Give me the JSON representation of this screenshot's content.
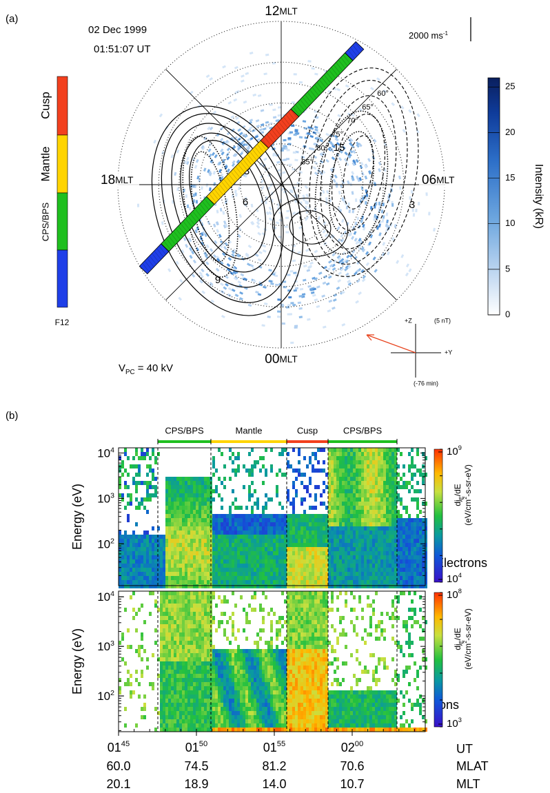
{
  "panel_a": {
    "label": "(a)",
    "date": "02 Dec 1999",
    "time": "01:51:07 UT",
    "mlt_labels": [
      {
        "hour": "12",
        "unit": "MLT"
      },
      {
        "hour": "06",
        "unit": "MLT"
      },
      {
        "hour": "00",
        "unit": "MLT"
      },
      {
        "hour": "18",
        "unit": "MLT"
      }
    ],
    "latitudes": [
      {
        "value": 60,
        "label": "60°"
      },
      {
        "value": 65,
        "label": "65°"
      },
      {
        "value": 70,
        "label": "70°"
      },
      {
        "value": 75,
        "label": "75°"
      },
      {
        "value": 80,
        "label": "80°"
      },
      {
        "value": 85,
        "label": "85°"
      }
    ],
    "contour_labels": [
      "3",
      "6",
      "9",
      "15",
      "3"
    ],
    "velocity_scale": {
      "text": "2000 ms",
      "exponent": "-1"
    },
    "polar_cap_potential": {
      "symbol": "V",
      "subscript": "PC",
      "text": " = 40 kV"
    },
    "imf": {
      "z": "+Z",
      "magnitude": "(5 nT)",
      "y": "+Y",
      "delay": "(-76 min)"
    },
    "regions": [
      {
        "name": "Cusp",
        "color": "#f2401e"
      },
      {
        "name": "Mantle",
        "color": "#ffd400"
      },
      {
        "name": "CPS/BPS",
        "color": "#1fbf1f"
      }
    ],
    "satellite": {
      "name": "F12",
      "color": "#1f3fe8"
    },
    "intensity_colorbar": {
      "label": "Intensity (kR)",
      "ylim": [
        0,
        26
      ],
      "yticks": [
        0,
        5,
        10,
        15,
        20,
        25
      ]
    }
  },
  "panel_b": {
    "label": "(b)",
    "regions": [
      {
        "name": "CPS/BPS",
        "color": "#1fbf1f"
      },
      {
        "name": "Mantle",
        "color": "#ffd400"
      },
      {
        "name": "Cusp",
        "color": "#f2401e"
      },
      {
        "name": "CPS/BPS",
        "color": "#1fbf1f"
      }
    ],
    "spectrograms": [
      {
        "y_label": "Energy (eV)",
        "species": "Electrons",
        "ylim": [
          12,
          13000
        ],
        "yticks": [
          {
            "value": 100,
            "base": "10",
            "exp": "2"
          },
          {
            "value": 1000,
            "base": "10",
            "exp": "3"
          },
          {
            "value": 10000,
            "base": "10",
            "exp": "4"
          }
        ],
        "colorbar": {
          "quantity": "dj",
          "quantity_sub": "E",
          "quantity_rest": "/dE",
          "units": "(eV/cm",
          "units_sup": "2",
          "units_rest": "-s-sr-eV)",
          "range": [
            {
              "value": 10000,
              "base": "10",
              "exp": "4"
            },
            {
              "value": 1000000000,
              "base": "10",
              "exp": "9"
            }
          ]
        }
      },
      {
        "y_label": "Energy (eV)",
        "species": "Ions",
        "ylim": [
          19,
          13000
        ],
        "yticks": [
          {
            "value": 100,
            "base": "10",
            "exp": "2"
          },
          {
            "value": 1000,
            "base": "10",
            "exp": "3"
          },
          {
            "value": 10000,
            "base": "10",
            "exp": "4"
          }
        ],
        "colorbar": {
          "quantity": "dj",
          "quantity_sub": "E",
          "quantity_rest": "/dE",
          "units": "(eV/cm",
          "units_sup": "2",
          "units_rest": "-s-sr-eV)",
          "range": [
            {
              "value": 1000,
              "base": "10",
              "exp": "3"
            },
            {
              "value": 100000000,
              "base": "10",
              "exp": "8"
            }
          ]
        }
      }
    ],
    "time": {
      "label": "UT",
      "ticks": [
        {
          "hour": "01",
          "minute": "45"
        },
        {
          "hour": "01",
          "minute": "50"
        },
        {
          "hour": "01",
          "minute": "55"
        },
        {
          "hour": "02",
          "minute": "00"
        }
      ]
    },
    "mlat": {
      "label": "MLAT",
      "values": [
        "60.0",
        "74.5",
        "81.2",
        "70.6"
      ]
    },
    "mlt": {
      "label": "MLT",
      "values": [
        "20.1",
        "18.9",
        "14.0",
        "10.7"
      ]
    }
  }
}
